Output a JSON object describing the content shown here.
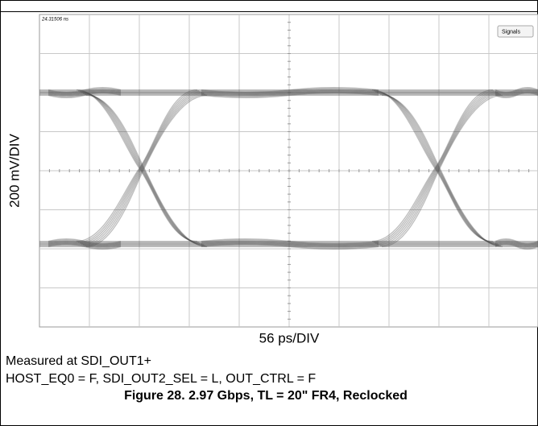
{
  "chart_data": {
    "type": "eye",
    "timestamp": "24.31506 ns",
    "menu_button": "Signals",
    "y_label": "200 mV/DIV",
    "x_label": "56 ps/DIV",
    "notes": [
      "Measured at SDI_OUT1+",
      "HOST_EQ0 = F, SDI_OUT2_SEL = L, OUT_CTRL = F"
    ],
    "caption": "Figure 28. 2.97 Gbps, TL = 20\" FR4, Reclocked",
    "grid": true
  }
}
